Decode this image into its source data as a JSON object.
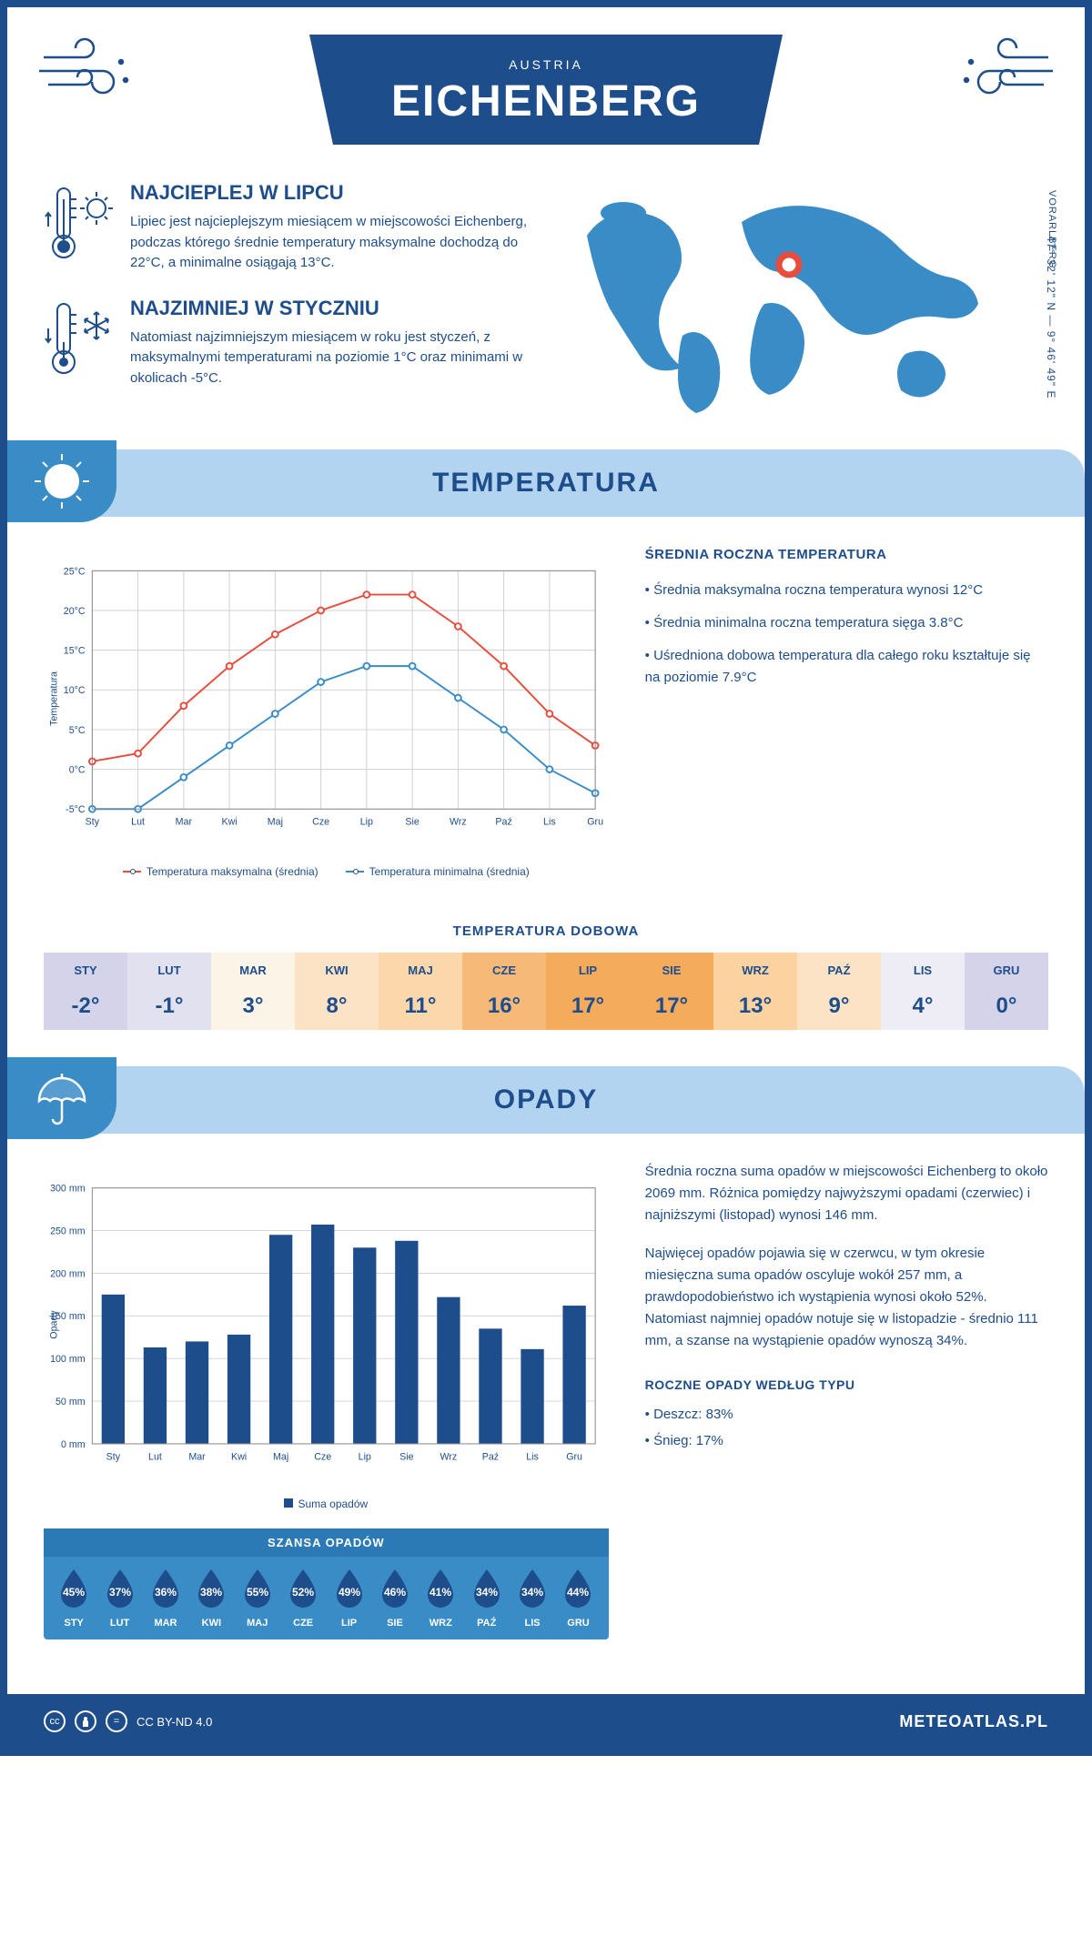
{
  "header": {
    "city": "EICHENBERG",
    "country": "AUSTRIA"
  },
  "intro": {
    "warmest": {
      "title": "NAJCIEPLEJ W LIPCU",
      "text": "Lipiec jest najcieplejszym miesiącem w miejscowości Eichenberg, podczas którego średnie temperatury maksymalne dochodzą do 22°C, a minimalne osiągają 13°C."
    },
    "coldest": {
      "title": "NAJZIMNIEJ W STYCZNIU",
      "text": "Natomiast najzimniejszym miesiącem w roku jest styczeń, z maksymalnymi temperaturami na poziomie 1°C oraz minimami w okolicach -5°C."
    },
    "coords": "47° 32' 12\" N — 9° 46' 49\" E",
    "region": "VORARLBERG"
  },
  "temp_section": {
    "title": "TEMPERATURA",
    "chart": {
      "type": "line",
      "months": [
        "Sty",
        "Lut",
        "Mar",
        "Kwi",
        "Maj",
        "Cze",
        "Lip",
        "Sie",
        "Wrz",
        "Paź",
        "Lis",
        "Gru"
      ],
      "max_series": {
        "label": "Temperatura maksymalna (średnia)",
        "color": "#e74c3c",
        "values": [
          1,
          2,
          8,
          13,
          17,
          20,
          22,
          22,
          18,
          13,
          7,
          3
        ]
      },
      "min_series": {
        "label": "Temperatura minimalna (średnia)",
        "color": "#3a8cc7",
        "values": [
          -5,
          -5,
          -1,
          3,
          7,
          11,
          13,
          13,
          9,
          5,
          0,
          -3
        ]
      },
      "ylim": [
        -5,
        25
      ],
      "ytick_step": 5,
      "y_axis_label": "Temperatura",
      "grid_color": "#d0d0d0",
      "background": "#ffffff",
      "marker": "circle",
      "line_width": 2
    },
    "summary": {
      "title": "ŚREDNIA ROCZNA TEMPERATURA",
      "items": [
        "Średnia maksymalna roczna temperatura wynosi 12°C",
        "Średnia minimalna roczna temperatura sięga 3.8°C",
        "Uśredniona dobowa temperatura dla całego roku kształtuje się na poziomie 7.9°C"
      ]
    },
    "daily": {
      "title": "TEMPERATURA DOBOWA",
      "months": [
        "STY",
        "LUT",
        "MAR",
        "KWI",
        "MAJ",
        "CZE",
        "LIP",
        "SIE",
        "WRZ",
        "PAŹ",
        "LIS",
        "GRU"
      ],
      "values": [
        "-2°",
        "-1°",
        "3°",
        "8°",
        "11°",
        "16°",
        "17°",
        "17°",
        "13°",
        "9°",
        "4°",
        "0°"
      ],
      "cell_colors": [
        "#d5d3ea",
        "#e2e1f0",
        "#fdf4e8",
        "#fce3c5",
        "#fbd7ab",
        "#f7b978",
        "#f5ab5c",
        "#f5ab5c",
        "#fbd2a0",
        "#fce3c5",
        "#eeedf5",
        "#d5d3ea"
      ],
      "text_color": "#1e4d8b"
    }
  },
  "rain_section": {
    "title": "OPADY",
    "chart": {
      "type": "bar",
      "months": [
        "Sty",
        "Lut",
        "Mar",
        "Kwi",
        "Maj",
        "Cze",
        "Lip",
        "Sie",
        "Wrz",
        "Paź",
        "Lis",
        "Gru"
      ],
      "values": [
        175,
        113,
        120,
        128,
        245,
        257,
        230,
        238,
        172,
        135,
        111,
        162
      ],
      "bar_color": "#1e4d8b",
      "ylim": [
        0,
        300
      ],
      "ytick_step": 50,
      "y_axis_label": "Opady",
      "legend_label": "Suma opadów",
      "grid_color": "#d0d0d0",
      "bar_width": 0.55
    },
    "summary_paragraphs": [
      "Średnia roczna suma opadów w miejscowości Eichenberg to około 2069 mm. Różnica pomiędzy najwyższymi opadami (czerwiec) i najniższymi (listopad) wynosi 146 mm.",
      "Najwięcej opadów pojawia się w czerwcu, w tym okresie miesięczna suma opadów oscyluje wokół 257 mm, a prawdopodobieństwo ich wystąpienia wynosi około 52%. Natomiast najmniej opadów notuje się w listopadzie - średnio 111 mm, a szanse na wystąpienie opadów wynoszą 34%."
    ],
    "chance": {
      "title": "SZANSA OPADÓW",
      "months": [
        "STY",
        "LUT",
        "MAR",
        "KWI",
        "MAJ",
        "CZE",
        "LIP",
        "SIE",
        "WRZ",
        "PAŹ",
        "LIS",
        "GRU"
      ],
      "values": [
        "45%",
        "37%",
        "36%",
        "38%",
        "55%",
        "52%",
        "49%",
        "46%",
        "41%",
        "34%",
        "34%",
        "44%"
      ],
      "drop_color": "#1e4d8b",
      "background": "#3a8cc7"
    },
    "types": {
      "title": "ROCZNE OPADY WEDŁUG TYPU",
      "items": [
        "Deszcz: 83%",
        "Śnieg: 17%"
      ]
    }
  },
  "footer": {
    "license": "CC BY-ND 4.0",
    "site": "METEOATLAS.PL"
  }
}
